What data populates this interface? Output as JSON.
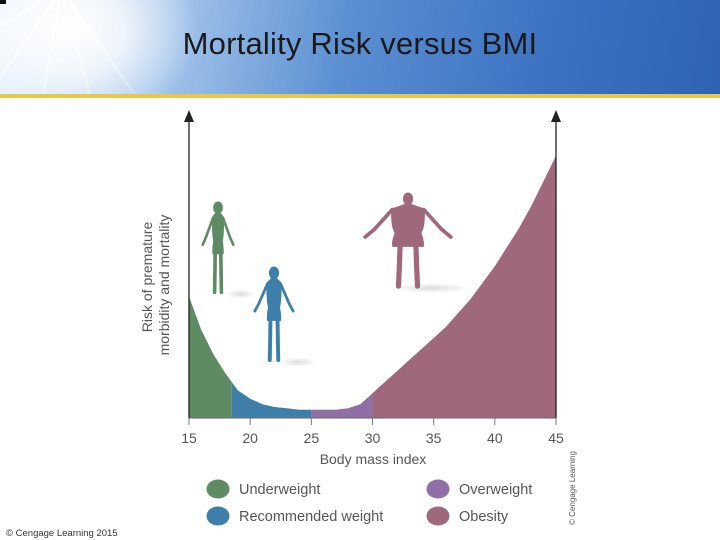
{
  "header": {
    "title": "Mortality Risk versus BMI"
  },
  "footer": {
    "copyright": "© Cengage Learning 2015"
  },
  "chart_data": {
    "type": "area",
    "title": "Mortality Risk versus BMI",
    "xlabel": "Body mass index",
    "ylabel_line1": "Risk of premature",
    "ylabel_line2": "morbidity and mortality",
    "xlim": [
      15,
      45
    ],
    "ylim": [
      0,
      100
    ],
    "xticks": [
      "15",
      "20",
      "25",
      "30",
      "35",
      "40",
      "45"
    ],
    "curve": {
      "x": [
        15,
        16,
        17,
        18,
        18.5,
        19,
        20,
        21,
        22,
        23,
        24,
        25,
        26,
        27,
        28,
        29,
        30,
        31,
        32,
        33,
        34,
        35,
        36,
        37,
        38,
        39,
        40,
        41,
        42,
        43,
        44,
        45
      ],
      "y": [
        44,
        32,
        23,
        16,
        13,
        10,
        7,
        5,
        4,
        3.5,
        3,
        3,
        3,
        3,
        3.5,
        5,
        9,
        13,
        17,
        21,
        25,
        29,
        33,
        38,
        43,
        49,
        55,
        62,
        69,
        77,
        86,
        95
      ]
    },
    "zones": [
      {
        "name": "Underweight",
        "from": 15,
        "to": 18.5,
        "color": "#5e8a64"
      },
      {
        "name": "Recommended weight",
        "from": 18.5,
        "to": 25,
        "color": "#3d7fa8"
      },
      {
        "name": "Overweight",
        "from": 25,
        "to": 30,
        "color": "#8f6fa6"
      },
      {
        "name": "Obesity",
        "from": 30,
        "to": 45,
        "color": "#a0687c"
      }
    ],
    "legend": [
      {
        "label": "Underweight",
        "color": "#5e8a64"
      },
      {
        "label": "Overweight",
        "color": "#8f6fa6"
      },
      {
        "label": "Recommended weight",
        "color": "#3d7fa8"
      },
      {
        "label": "Obesity",
        "color": "#a0687c"
      }
    ],
    "legend_placement": "bottom",
    "grid": false,
    "source_note": "© Cengage Learning"
  }
}
